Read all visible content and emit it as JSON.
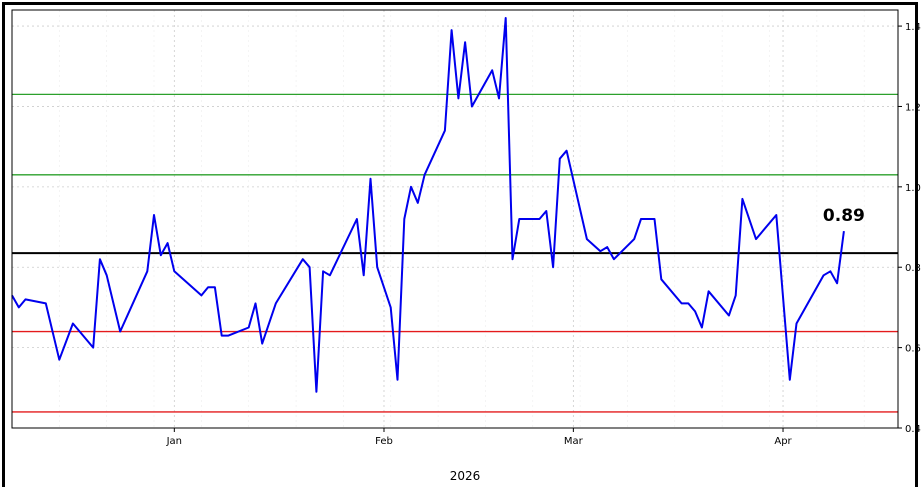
{
  "chart_data": {
    "type": "line",
    "xlabel": "2026",
    "ylabel": "",
    "ylim": [
      0.4,
      1.44
    ],
    "y_ticks": [
      0.4,
      0.6,
      0.8,
      1.0,
      1.2,
      1.4
    ],
    "y_tick_labels": [
      "0.4",
      "0.6",
      "0.8",
      "1.0",
      "1.2",
      "1.4"
    ],
    "x_ticks": [
      {
        "label": "Jan",
        "x": "2026-01-01"
      },
      {
        "label": "Feb",
        "x": "2026-02-01"
      },
      {
        "label": "Mar",
        "x": "2026-03-01"
      },
      {
        "label": "Apr",
        "x": "2026-04-01"
      }
    ],
    "xlim": [
      "2025-12-08",
      "2026-04-18"
    ],
    "grid": true,
    "last_value_label": "0.89",
    "horizontal_lines": [
      {
        "y": 1.23,
        "color": "#2ca02c"
      },
      {
        "y": 1.03,
        "color": "#2ca02c"
      },
      {
        "y": 0.835,
        "color": "#000000"
      },
      {
        "y": 0.64,
        "color": "#e41a1c"
      },
      {
        "y": 0.44,
        "color": "#e41a1c"
      }
    ],
    "series": [
      {
        "color": "#0000ee",
        "points": [
          [
            "2025-12-08",
            0.73
          ],
          [
            "2025-12-09",
            0.7
          ],
          [
            "2025-12-10",
            0.72
          ],
          [
            "2025-12-13",
            0.71
          ],
          [
            "2025-12-15",
            0.57
          ],
          [
            "2025-12-17",
            0.66
          ],
          [
            "2025-12-20",
            0.6
          ],
          [
            "2025-12-21",
            0.82
          ],
          [
            "2025-12-22",
            0.78
          ],
          [
            "2025-12-24",
            0.64
          ],
          [
            "2025-12-28",
            0.79
          ],
          [
            "2025-12-29",
            0.93
          ],
          [
            "2025-12-30",
            0.83
          ],
          [
            "2025-12-31",
            0.86
          ],
          [
            "2026-01-01",
            0.79
          ],
          [
            "2026-01-05",
            0.73
          ],
          [
            "2026-01-06",
            0.75
          ],
          [
            "2026-01-07",
            0.75
          ],
          [
            "2026-01-08",
            0.63
          ],
          [
            "2026-01-09",
            0.63
          ],
          [
            "2026-01-12",
            0.65
          ],
          [
            "2026-01-13",
            0.71
          ],
          [
            "2026-01-14",
            0.61
          ],
          [
            "2026-01-16",
            0.71
          ],
          [
            "2026-01-20",
            0.82
          ],
          [
            "2026-01-21",
            0.8
          ],
          [
            "2026-01-22",
            0.49
          ],
          [
            "2026-01-23",
            0.79
          ],
          [
            "2026-01-24",
            0.78
          ],
          [
            "2026-01-28",
            0.92
          ],
          [
            "2026-01-29",
            0.78
          ],
          [
            "2026-01-30",
            1.02
          ],
          [
            "2026-01-31",
            0.8
          ],
          [
            "2026-02-02",
            0.7
          ],
          [
            "2026-02-03",
            0.52
          ],
          [
            "2026-02-04",
            0.92
          ],
          [
            "2026-02-05",
            1.0
          ],
          [
            "2026-02-06",
            0.96
          ],
          [
            "2026-02-07",
            1.03
          ],
          [
            "2026-02-10",
            1.14
          ],
          [
            "2026-02-11",
            1.39
          ],
          [
            "2026-02-12",
            1.22
          ],
          [
            "2026-02-13",
            1.36
          ],
          [
            "2026-02-14",
            1.2
          ],
          [
            "2026-02-17",
            1.29
          ],
          [
            "2026-02-18",
            1.22
          ],
          [
            "2026-02-19",
            1.42
          ],
          [
            "2026-02-20",
            0.82
          ],
          [
            "2026-02-21",
            0.92
          ],
          [
            "2026-02-24",
            0.92
          ],
          [
            "2026-02-25",
            0.94
          ],
          [
            "2026-02-26",
            0.8
          ],
          [
            "2026-02-27",
            1.07
          ],
          [
            "2026-02-28",
            1.09
          ],
          [
            "2026-03-03",
            0.87
          ],
          [
            "2026-03-05",
            0.84
          ],
          [
            "2026-03-06",
            0.85
          ],
          [
            "2026-03-07",
            0.82
          ],
          [
            "2026-03-10",
            0.87
          ],
          [
            "2026-03-11",
            0.92
          ],
          [
            "2026-03-13",
            0.92
          ],
          [
            "2026-03-14",
            0.77
          ],
          [
            "2026-03-17",
            0.71
          ],
          [
            "2026-03-18",
            0.71
          ],
          [
            "2026-03-19",
            0.69
          ],
          [
            "2026-03-20",
            0.65
          ],
          [
            "2026-03-21",
            0.74
          ],
          [
            "2026-03-24",
            0.68
          ],
          [
            "2026-03-25",
            0.73
          ],
          [
            "2026-03-26",
            0.97
          ],
          [
            "2026-03-28",
            0.87
          ],
          [
            "2026-03-31",
            0.93
          ],
          [
            "2026-04-02",
            0.52
          ],
          [
            "2026-04-03",
            0.66
          ],
          [
            "2026-04-07",
            0.78
          ],
          [
            "2026-04-08",
            0.79
          ],
          [
            "2026-04-09",
            0.76
          ],
          [
            "2026-04-10",
            0.89
          ]
        ]
      }
    ]
  }
}
